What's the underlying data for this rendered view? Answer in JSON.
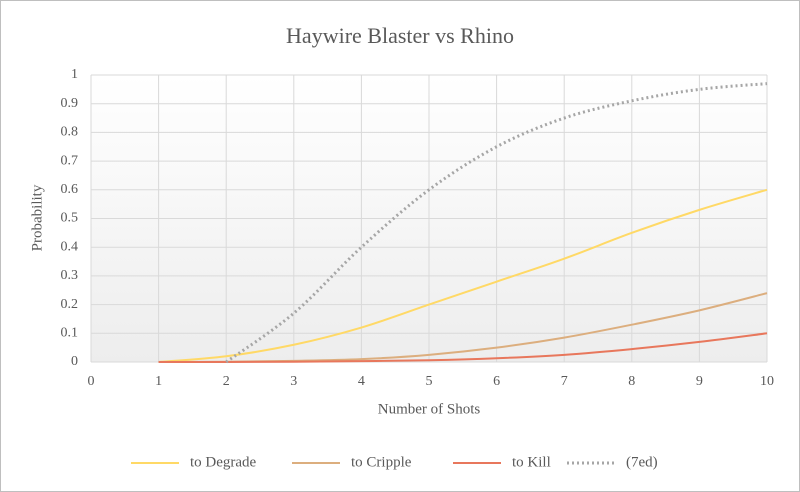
{
  "chart_data": {
    "type": "line",
    "title": "Haywire Blaster vs Rhino",
    "x_label": "Number of Shots",
    "y_label": "Probability",
    "x": [
      1,
      2,
      3,
      4,
      5,
      6,
      7,
      8,
      9,
      10
    ],
    "xlim": [
      0,
      10
    ],
    "xticks": [
      0,
      1,
      2,
      3,
      4,
      5,
      6,
      7,
      8,
      9,
      10
    ],
    "ylim": [
      0,
      1
    ],
    "yticks": [
      0,
      0.1,
      0.2,
      0.3,
      0.4,
      0.5,
      0.6,
      0.7,
      0.8,
      0.9,
      1
    ],
    "grid": true,
    "legend": "bottom",
    "series": [
      {
        "name": "to Degrade",
        "color": "#ffd966",
        "style": "solid",
        "values": [
          0,
          0.02,
          0.06,
          0.12,
          0.2,
          0.28,
          0.36,
          0.45,
          0.53,
          0.6
        ]
      },
      {
        "name": "to Cripple",
        "color": "#dcae7e",
        "style": "solid",
        "values": [
          0,
          0.001,
          0.004,
          0.01,
          0.025,
          0.05,
          0.085,
          0.13,
          0.18,
          0.24
        ]
      },
      {
        "name": "to Kill",
        "color": "#e8775c",
        "style": "solid",
        "values": [
          0,
          0,
          0.001,
          0.003,
          0.006,
          0.013,
          0.025,
          0.045,
          0.07,
          0.1
        ]
      },
      {
        "name": "(7ed)",
        "color": "#a6a6a6",
        "style": "dotted",
        "values": [
          null,
          0,
          0.17,
          0.4,
          0.6,
          0.75,
          0.85,
          0.91,
          0.95,
          0.97
        ]
      }
    ]
  }
}
